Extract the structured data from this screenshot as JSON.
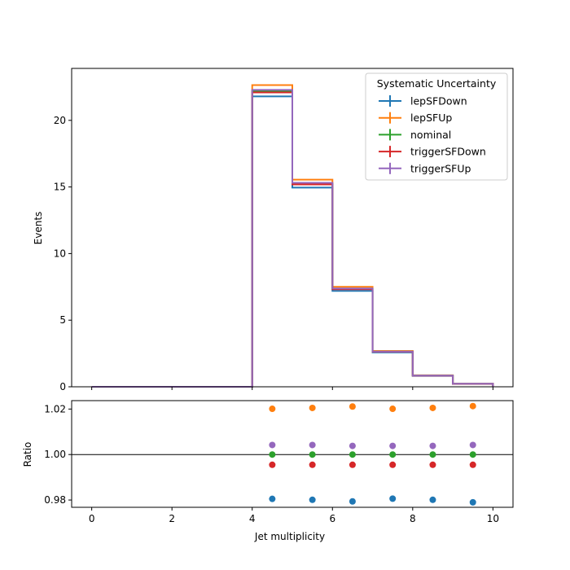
{
  "chart_data": [
    {
      "type": "line",
      "style": "step-histogram",
      "bin_edges": [
        0,
        1,
        2,
        3,
        4,
        5,
        6,
        7,
        8,
        9,
        10
      ],
      "xlim": [
        -0.5,
        10.5
      ],
      "ylim": [
        0,
        23.9
      ],
      "xticks": [
        0,
        2,
        4,
        6,
        8,
        10
      ],
      "yticks": [
        0,
        5,
        10,
        15,
        20
      ],
      "xlabel": "",
      "ylabel": "Events",
      "legend": {
        "title": "Systematic Uncertainty",
        "placement": "top-right"
      },
      "series": [
        {
          "name": "lepSFDown",
          "color": "#1f77b4",
          "values": [
            0,
            0,
            0,
            0,
            21.8,
            14.95,
            7.2,
            2.58,
            0.82,
            0.22
          ]
        },
        {
          "name": "lepSFUp",
          "color": "#ff7f0e",
          "values": [
            0,
            0,
            0,
            0,
            22.65,
            15.55,
            7.5,
            2.69,
            0.86,
            0.23
          ]
        },
        {
          "name": "nominal",
          "color": "#2ca02c",
          "values": [
            0,
            0,
            0,
            0,
            22.2,
            15.25,
            7.35,
            2.635,
            0.84,
            0.225
          ]
        },
        {
          "name": "triggerSFDown",
          "color": "#d62728",
          "values": [
            0,
            0,
            0,
            0,
            22.1,
            15.19,
            7.32,
            2.625,
            0.836,
            0.224
          ]
        },
        {
          "name": "triggerSFUp",
          "color": "#9467bd",
          "values": [
            0,
            0,
            0,
            0,
            22.29,
            15.31,
            7.38,
            2.645,
            0.843,
            0.226
          ]
        }
      ]
    },
    {
      "type": "scatter",
      "xlim": [
        -0.5,
        10.5
      ],
      "ylim": [
        0.9768,
        1.0237
      ],
      "xticks": [
        0,
        2,
        4,
        6,
        8,
        10
      ],
      "yticks": [
        0.98,
        1.0,
        1.02
      ],
      "ytick_labels": [
        "0.98",
        "1.00",
        "1.02"
      ],
      "xlabel": "Jet multiplicity",
      "ylabel": "Ratio",
      "reference_line": 1.0,
      "x": [
        4.5,
        5.5,
        6.5,
        7.5,
        8.5,
        9.5
      ],
      "series": [
        {
          "name": "lepSFDown",
          "color": "#1f77b4",
          "values": [
            0.9805,
            0.9801,
            0.9794,
            0.9806,
            0.9801,
            0.979
          ]
        },
        {
          "name": "lepSFUp",
          "color": "#ff7f0e",
          "values": [
            1.0201,
            1.0205,
            1.0211,
            1.0201,
            1.0205,
            1.0213
          ]
        },
        {
          "name": "nominal",
          "color": "#2ca02c",
          "values": [
            1.0,
            1.0,
            1.0,
            1.0,
            1.0,
            1.0
          ]
        },
        {
          "name": "triggerSFDown",
          "color": "#d62728",
          "values": [
            0.9955,
            0.9955,
            0.9955,
            0.9955,
            0.9955,
            0.9955
          ]
        },
        {
          "name": "triggerSFUp",
          "color": "#9467bd",
          "values": [
            1.0042,
            1.0042,
            1.0038,
            1.0038,
            1.0038,
            1.0042
          ]
        }
      ]
    }
  ]
}
